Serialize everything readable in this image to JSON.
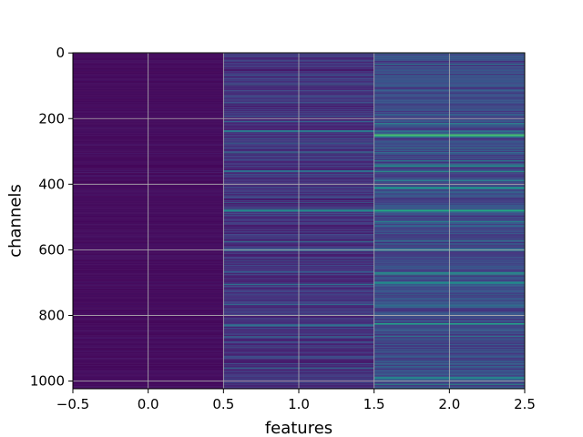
{
  "chart_data": {
    "type": "heatmap",
    "title": "",
    "xlabel": "features",
    "ylabel": "channels",
    "x_categories": [
      0,
      1,
      2
    ],
    "n_rows": 1024,
    "xlim": [
      -0.5,
      2.5
    ],
    "ylim": [
      1023.5,
      -0.5
    ],
    "x_ticks": [
      -0.5,
      0.0,
      0.5,
      1.0,
      1.5,
      2.0,
      2.5
    ],
    "x_tick_labels": [
      "−0.5",
      "0.0",
      "0.5",
      "1.0",
      "1.5",
      "2.0",
      "2.5"
    ],
    "y_ticks": [
      0,
      200,
      400,
      600,
      800,
      1000
    ],
    "y_tick_labels": [
      "0",
      "200",
      "400",
      "600",
      "800",
      "1000"
    ],
    "grid": true,
    "colormap": "viridis",
    "value_range": [
      0,
      1
    ],
    "column_profiles": [
      {
        "feature": 0,
        "typical_value": 0.04,
        "spread": 0.04,
        "highlights": []
      },
      {
        "feature": 1,
        "typical_value": 0.18,
        "spread": 0.2,
        "highlights": [
          [
            238,
            0.5
          ],
          [
            360,
            0.45
          ],
          [
            480,
            0.6
          ],
          [
            600,
            0.45
          ],
          [
            705,
            0.45
          ],
          [
            830,
            0.45
          ]
        ]
      },
      {
        "feature": 2,
        "typical_value": 0.28,
        "spread": 0.25,
        "highlights": [
          [
            215,
            0.55
          ],
          [
            250,
            0.8
          ],
          [
            345,
            0.6
          ],
          [
            410,
            0.6
          ],
          [
            480,
            0.75
          ],
          [
            600,
            0.5
          ],
          [
            700,
            0.6
          ],
          [
            825,
            0.7
          ],
          [
            990,
            0.55
          ]
        ]
      }
    ]
  }
}
